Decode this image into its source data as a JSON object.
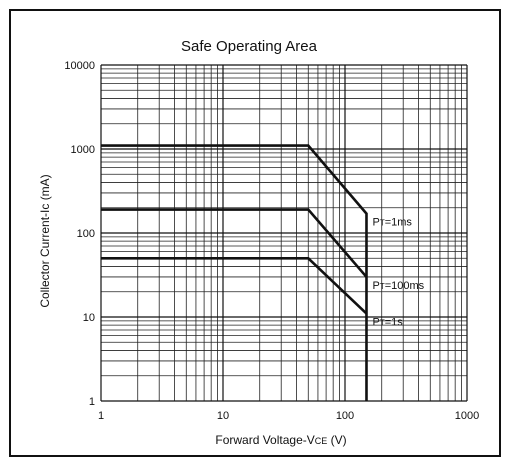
{
  "chart_data": {
    "type": "line",
    "title": "Safe Operating Area",
    "xlabel": {
      "main": "Forward Voltage-V",
      "sub": "CE",
      "unit": " (V)"
    },
    "ylabel": "Collector Current-Ic (mA)",
    "x_scale": "log",
    "y_scale": "log",
    "xlim": [
      1,
      1000
    ],
    "ylim": [
      1,
      10000
    ],
    "x_ticks": [
      "1",
      "10",
      "100",
      "1000"
    ],
    "y_ticks": [
      "1",
      "10",
      "100",
      "1000",
      "10000"
    ],
    "grid": true,
    "line_color": "#111111",
    "series": [
      {
        "name": "PT=1ms",
        "label_main": "P",
        "label_sub": "T",
        "label_rest": "=1ms",
        "x": [
          1,
          50,
          150,
          150
        ],
        "y": [
          1100,
          1100,
          170,
          1
        ]
      },
      {
        "name": "PT=100ms",
        "label_main": "P",
        "label_sub": "T",
        "label_rest": "=100ms",
        "x": [
          1,
          50,
          150
        ],
        "y": [
          190,
          190,
          30
        ]
      },
      {
        "name": "PT=1s",
        "label_main": "P",
        "label_sub": "T",
        "label_rest": "=1s",
        "x": [
          1,
          50,
          150
        ],
        "y": [
          50,
          50,
          11
        ]
      }
    ]
  }
}
